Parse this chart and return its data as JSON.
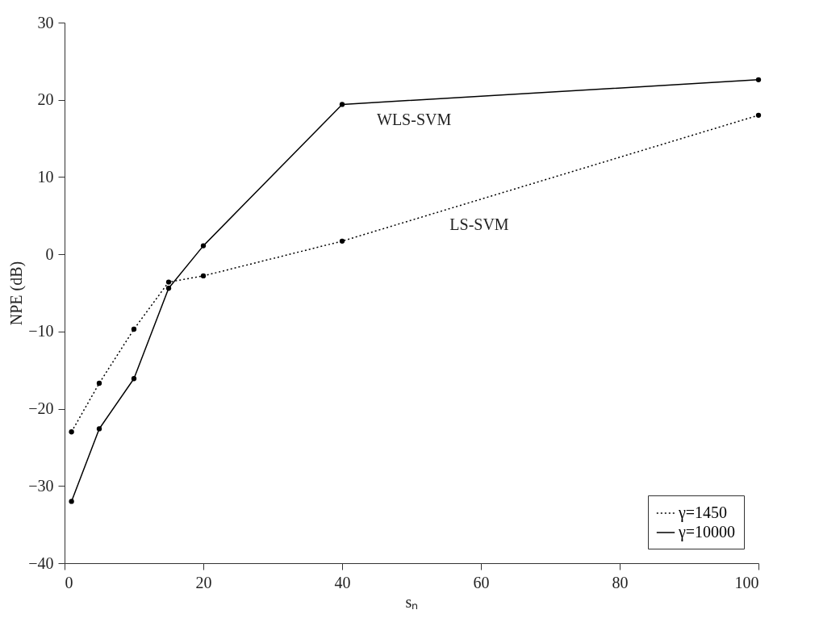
{
  "chart_data": {
    "type": "line",
    "xlabel": "sₙ",
    "ylabel": "NPE (dB)",
    "x": [
      1,
      5,
      10,
      15,
      20,
      40,
      100
    ],
    "series": [
      {
        "name": "γ=1450",
        "color": "#000000",
        "line_style": "dotted",
        "values": [
          -23,
          -16.7,
          -9.7,
          -3.6,
          -2.8,
          1.7,
          18
        ]
      },
      {
        "name": "γ=10000",
        "color": "#000000",
        "line_style": "solid",
        "values": [
          -32,
          -22.6,
          -16.1,
          -4.4,
          1.1,
          19.4,
          22.6
        ]
      }
    ],
    "annotations": [
      "WLS-SVM",
      "LS-SVM"
    ],
    "xlim": [
      0,
      100
    ],
    "xticks": [
      0,
      20,
      40,
      60,
      80,
      100
    ],
    "ylim": [
      -40,
      30
    ],
    "yticks": [
      -40,
      -30,
      -20,
      -10,
      0,
      10,
      20,
      30
    ],
    "grid": false,
    "legend": "bottom right",
    "marker": "circle"
  }
}
